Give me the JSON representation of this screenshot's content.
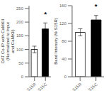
{
  "chart_data": [
    {
      "type": "bar",
      "categories": [
        "S15R",
        "S15C"
      ],
      "values": [
        100,
        175
      ],
      "errors": [
        12,
        22
      ],
      "colors": [
        "white",
        "black"
      ],
      "ylabel": "DAT Co-IP with CaMKII\n(Normalized to Input\nand CaMKII)",
      "ylim": [
        0,
        260
      ],
      "yticks": [
        0,
        50,
        100,
        150,
        200,
        250
      ],
      "grid": false,
      "annotations": [
        {
          "text": "*",
          "x": "S15C",
          "y": 208
        }
      ]
    },
    {
      "type": "bar",
      "categories": [
        "S15R",
        "S15C"
      ],
      "values": [
        100,
        128
      ],
      "errors": [
        8,
        10
      ],
      "colors": [
        "white",
        "black"
      ],
      "ylabel": "Band Intensity (% S15R)",
      "ylim": [
        0,
        160
      ],
      "yticks": [
        0,
        40,
        80,
        120,
        160
      ],
      "grid": false,
      "annotations": [
        {
          "text": "*",
          "x": "S15C",
          "y": 145
        }
      ]
    }
  ]
}
